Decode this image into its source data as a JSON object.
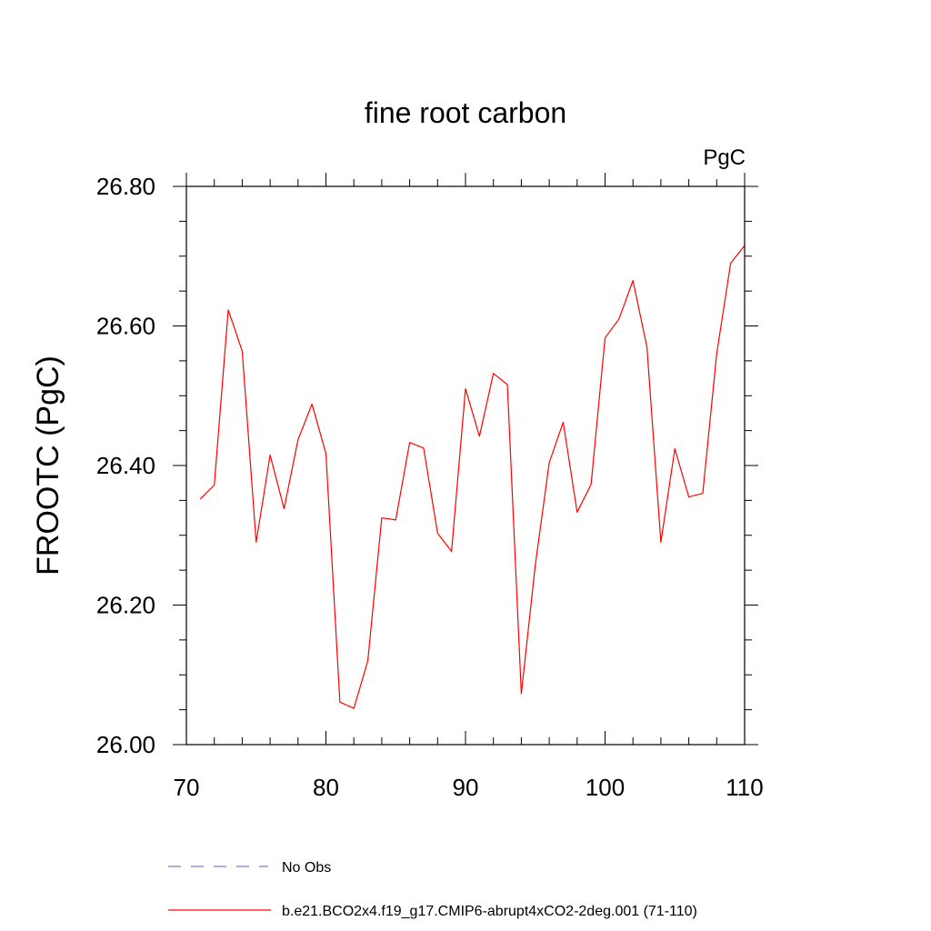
{
  "chart_data": {
    "type": "line",
    "title": "fine root carbon",
    "units": "PgC",
    "xlabel": "",
    "ylabel": "FROOTC  (PgC)",
    "xlim": [
      70,
      110
    ],
    "ylim": [
      26.0,
      26.8
    ],
    "x_ticks": [
      70,
      80,
      90,
      100,
      110
    ],
    "x_tick_labels": [
      "70",
      "80",
      "90",
      "100",
      "110"
    ],
    "y_ticks": [
      26.0,
      26.2,
      26.4,
      26.6,
      26.8
    ],
    "y_tick_labels": [
      "26.00",
      "26.20",
      "26.40",
      "26.60",
      "26.80"
    ],
    "x_minor_step": 2,
    "y_minor_step": 0.05,
    "grid": false,
    "legend_position": "bottom",
    "series": [
      {
        "name": "b.e21.BCO2x4.f19_g17.CMIP6-abrupt4xCO2-2deg.001 (71-110)",
        "color": "#ff0000",
        "style": "solid",
        "x": [
          71,
          72,
          73,
          74,
          75,
          76,
          77,
          78,
          79,
          80,
          81,
          82,
          83,
          84,
          85,
          86,
          87,
          88,
          89,
          90,
          91,
          92,
          93,
          94,
          95,
          96,
          97,
          98,
          99,
          100,
          101,
          102,
          103,
          104,
          105,
          106,
          107,
          108,
          109,
          110
        ],
        "values": [
          26.352,
          26.372,
          26.623,
          26.564,
          26.29,
          26.415,
          26.338,
          26.437,
          26.488,
          26.417,
          26.061,
          26.052,
          26.12,
          26.325,
          26.322,
          26.433,
          26.425,
          26.303,
          26.277,
          26.51,
          26.442,
          26.532,
          26.516,
          26.073,
          26.257,
          26.404,
          26.462,
          26.333,
          26.373,
          26.583,
          26.61,
          26.665,
          26.57,
          26.29,
          26.424,
          26.355,
          26.36,
          26.56,
          26.69,
          26.715
        ]
      },
      {
        "name": "No Obs",
        "color": "#8878c8",
        "style": "dashed",
        "x": [],
        "values": []
      }
    ]
  }
}
